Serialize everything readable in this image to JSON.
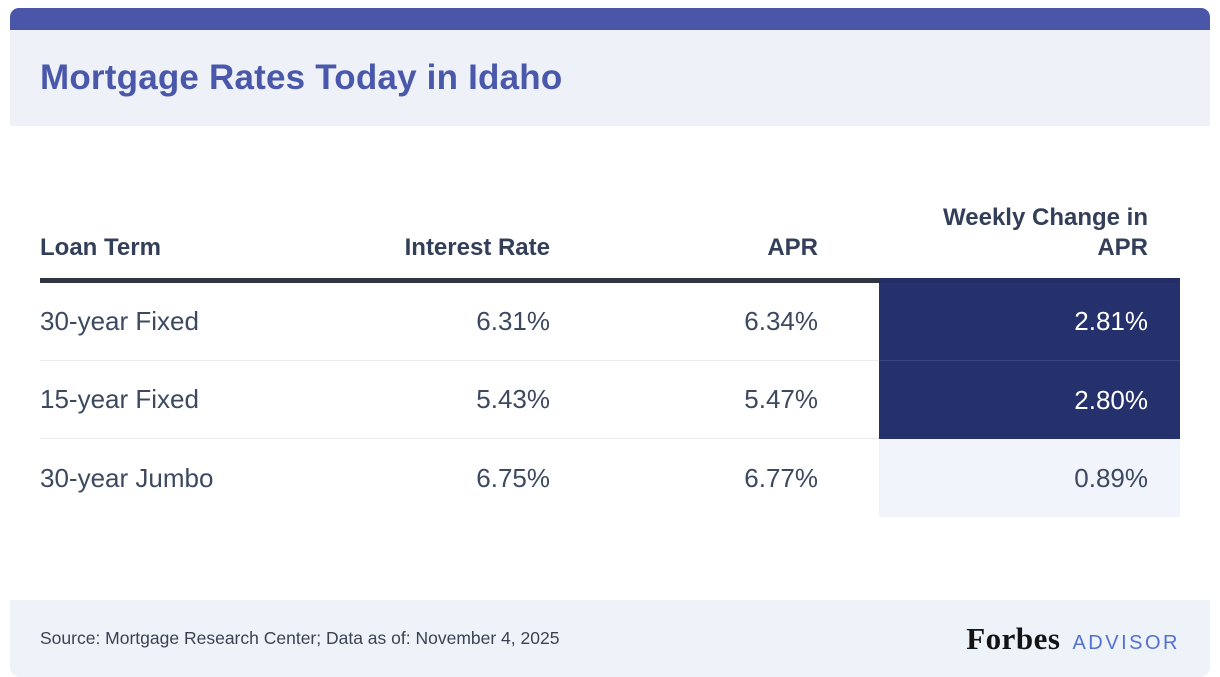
{
  "chart_data": {
    "type": "table",
    "title": "Mortgage Rates Today in Idaho",
    "columns": [
      "Loan Term",
      "Interest Rate",
      "APR",
      "Weekly Change in APR"
    ],
    "rows": [
      [
        "30-year Fixed",
        "6.31%",
        "6.34%",
        "2.81%"
      ],
      [
        "15-year Fixed",
        "5.43%",
        "5.47%",
        "2.80%"
      ],
      [
        "30-year Jumbo",
        "6.75%",
        "6.77%",
        "0.89%"
      ]
    ],
    "highlighted_weekly_change_rows": [
      0,
      1
    ],
    "source": "Source: Mortgage Research Center; Data as of: November 4, 2025"
  },
  "footer": {
    "source": "Source: Mortgage Research Center; Data as of: November 4, 2025",
    "brand": "Forbes",
    "brand_suffix": "ADVISOR"
  },
  "colors": {
    "top_bar": "#4a57a9",
    "title_text": "#4a58ab",
    "header_band": "#eef1f8",
    "footer_band": "#eef2f9",
    "header_border": "#2f3542",
    "highlight_cell": "#25316d",
    "highlight_cell_text": "#ffffff",
    "light_cell": "#f1f4fb",
    "body_text": "#3c4961",
    "advisor_blue": "#5271d3",
    "forbes_black": "#141414"
  }
}
